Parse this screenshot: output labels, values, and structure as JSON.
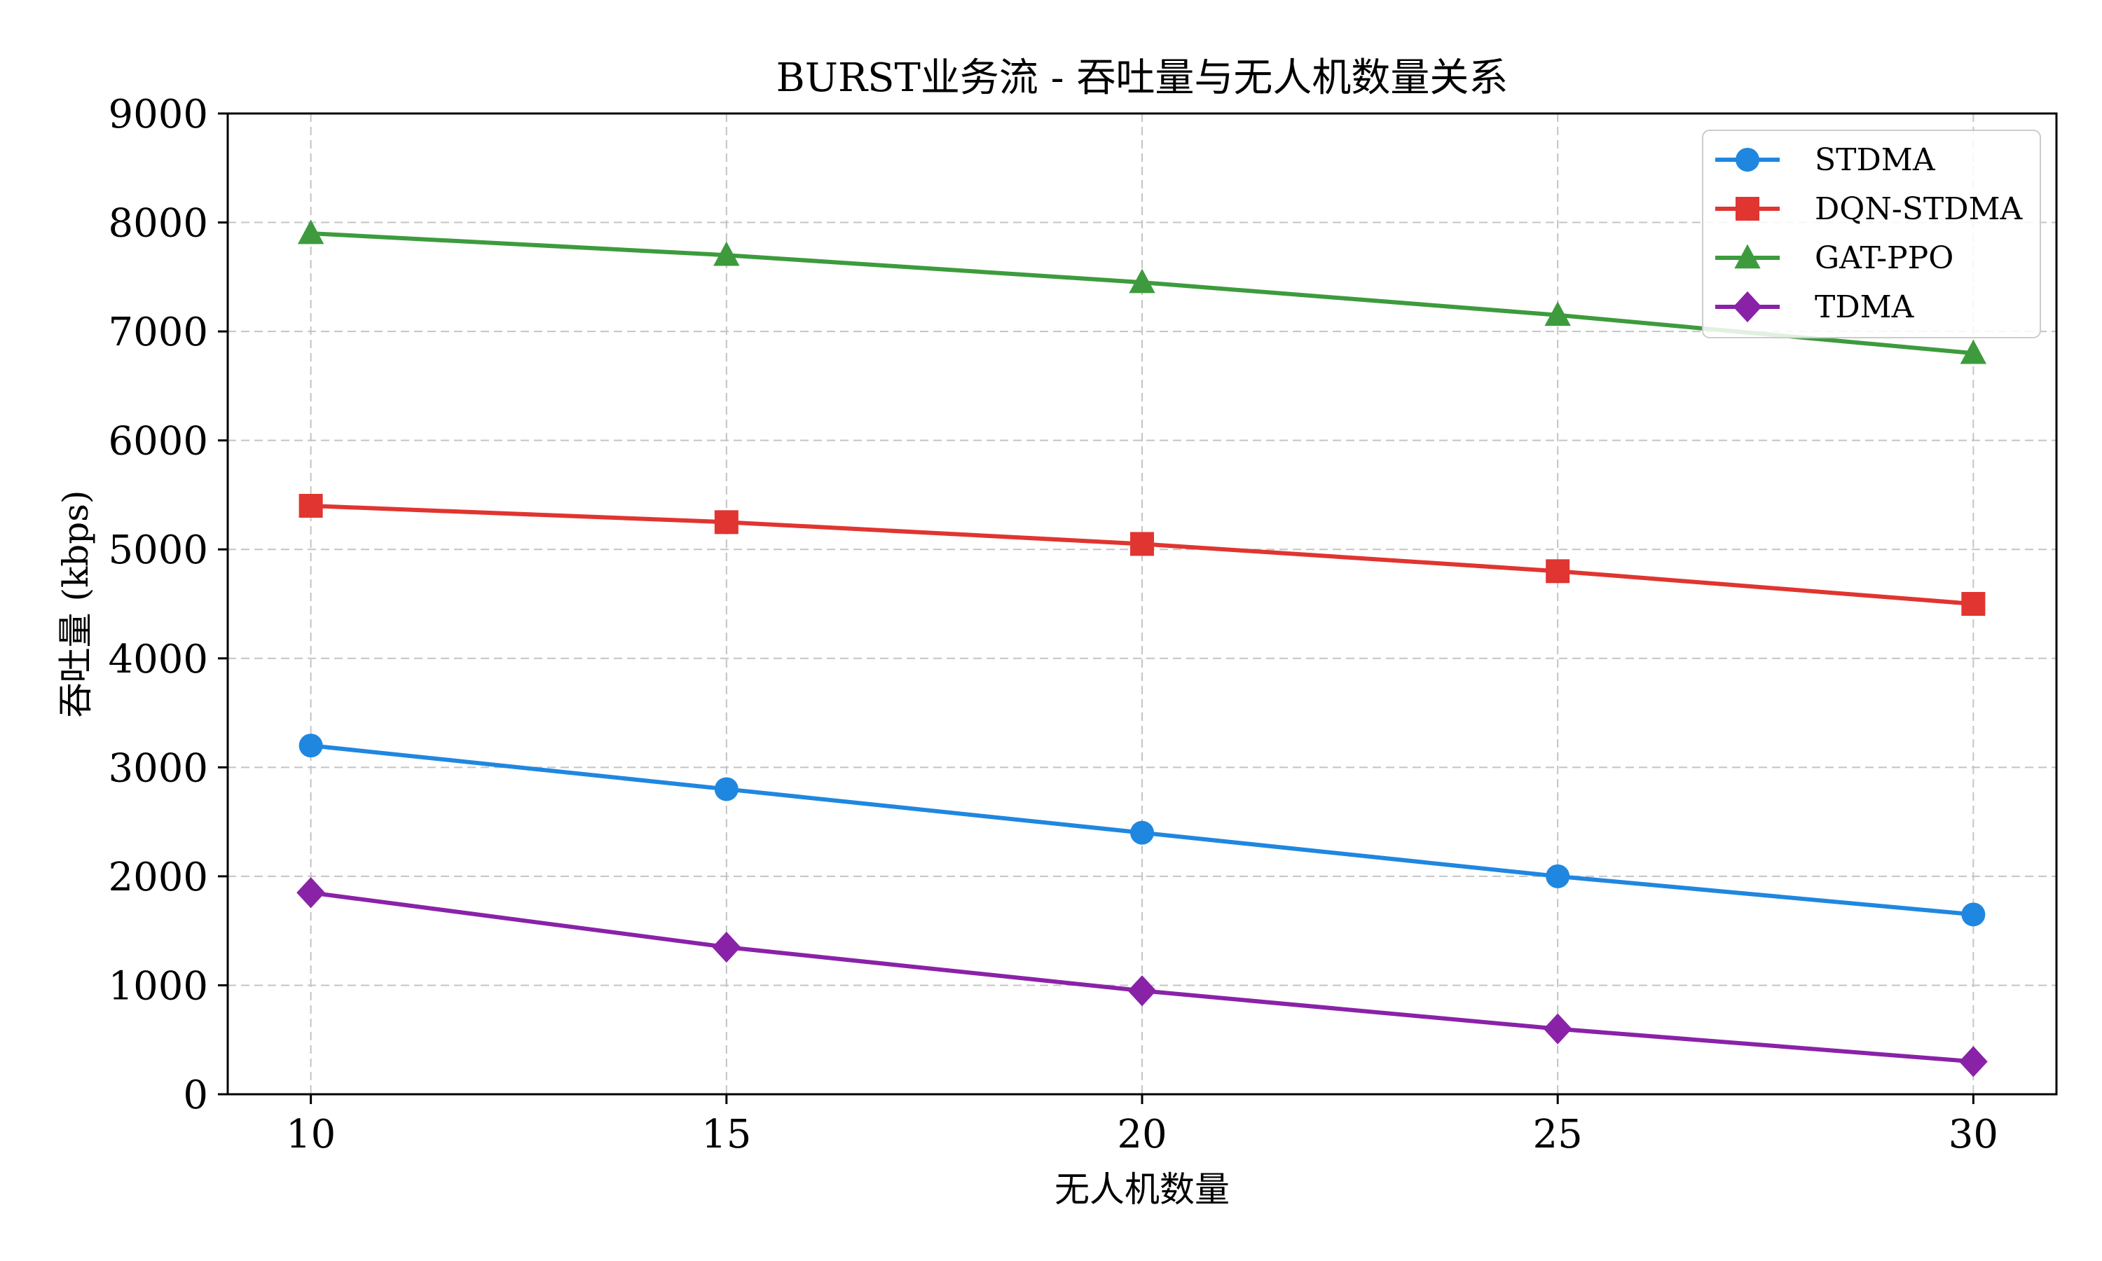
{
  "chart_data": {
    "type": "line",
    "title": "BURST业务流 - 吞吐量与无人机数量关系",
    "xlabel": "无人机数量",
    "ylabel": "吞吐量 (kbps)",
    "x": [
      10,
      15,
      20,
      25,
      30
    ],
    "xlim": [
      9,
      31
    ],
    "ylim": [
      0,
      9000
    ],
    "xticks": [
      10,
      15,
      20,
      25,
      30
    ],
    "yticks": [
      0,
      1000,
      2000,
      3000,
      4000,
      5000,
      6000,
      7000,
      8000,
      9000
    ],
    "grid": true,
    "legend_position": "top-right",
    "series": [
      {
        "name": "STDMA",
        "values": [
          3200,
          2800,
          2400,
          2000,
          1650
        ],
        "color": "#1f87e0",
        "marker": "circle"
      },
      {
        "name": "DQN-STDMA",
        "values": [
          5400,
          5250,
          5050,
          4800,
          4500
        ],
        "color": "#e03530",
        "marker": "square"
      },
      {
        "name": "GAT-PPO",
        "values": [
          7900,
          7700,
          7450,
          7150,
          6800
        ],
        "color": "#3d9b3d",
        "marker": "triangle"
      },
      {
        "name": "TDMA",
        "values": [
          1850,
          1350,
          950,
          600,
          300
        ],
        "color": "#8a22a8",
        "marker": "diamond"
      }
    ]
  }
}
